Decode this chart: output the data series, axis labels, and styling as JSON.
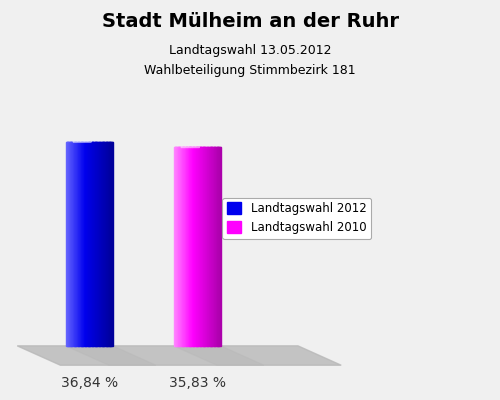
{
  "title": "Stadt Mülheim an der Ruhr",
  "subtitle1": "Landtagswahl 13.05.2012",
  "subtitle2": "Wahlbeteiligung Stimmbezirk 181",
  "values": [
    36.84,
    35.83
  ],
  "bar_colors": [
    "#0000ee",
    "#ff00ff"
  ],
  "bar_dark_colors": [
    "#000099",
    "#aa00aa"
  ],
  "bar_light_colors": [
    "#6666ff",
    "#ff88ff"
  ],
  "bar_labels": [
    "36,84 %",
    "35,83 %"
  ],
  "legend_labels": [
    "Landtagswahl 2012",
    "Landtagswahl 2010"
  ],
  "background_color": "#f0f0f0",
  "ylim_max": 48,
  "title_fontsize": 14,
  "subtitle_fontsize": 9,
  "label_fontsize": 10,
  "legend_fontsize": 8.5
}
